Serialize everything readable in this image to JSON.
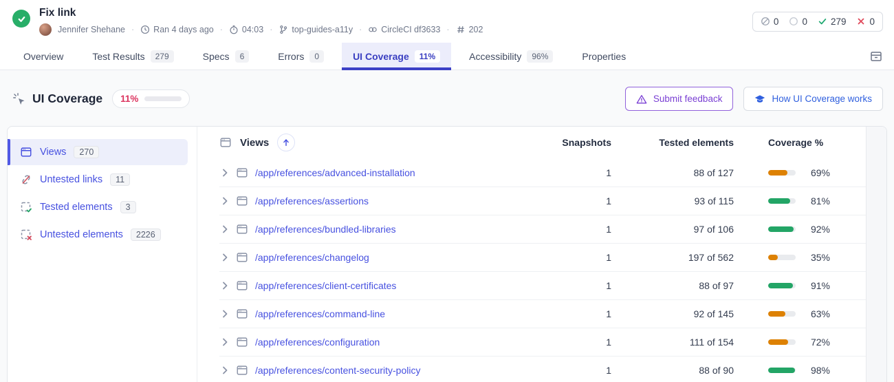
{
  "header": {
    "title": "Fix link",
    "author": "Jennifer Shehane",
    "ran": "Ran 4 days ago",
    "duration": "04:03",
    "branch": "top-guides-a11y",
    "commit": "CircleCI df3633",
    "build_number": "202",
    "stats": [
      {
        "icon": "skipped-icon",
        "value": "0"
      },
      {
        "icon": "pending-icon",
        "value": "0"
      },
      {
        "icon": "passed-icon",
        "value": "279"
      },
      {
        "icon": "failed-icon",
        "value": "0"
      }
    ]
  },
  "tabs": [
    {
      "label": "Overview"
    },
    {
      "label": "Test Results",
      "badge": "279"
    },
    {
      "label": "Specs",
      "badge": "6"
    },
    {
      "label": "Errors",
      "badge": "0"
    },
    {
      "label": "UI Coverage",
      "badge": "11%",
      "active": true
    },
    {
      "label": "Accessibility",
      "badge": "96%"
    },
    {
      "label": "Properties"
    }
  ],
  "page": {
    "title": "UI Coverage",
    "score": "11%",
    "score_value": 11,
    "feedback_button": "Submit feedback",
    "docs_button": "How UI Coverage works"
  },
  "sidebar": {
    "items": [
      {
        "label": "Views",
        "badge": "270",
        "icon": "browser-icon",
        "active": true
      },
      {
        "label": "Untested links",
        "badge": "11",
        "icon": "unlink-icon"
      },
      {
        "label": "Tested elements",
        "badge": "3",
        "icon": "element-check-icon"
      },
      {
        "label": "Untested elements",
        "badge": "2226",
        "icon": "element-x-icon"
      }
    ]
  },
  "table": {
    "group_header": "Views",
    "columns": [
      "Snapshots",
      "Tested elements",
      "Coverage %"
    ],
    "rows": [
      {
        "view": "/app/references/advanced-installation",
        "snapshots": "1",
        "tested": "88 of 127",
        "coverage": 69,
        "coverage_label": "69%",
        "bar": "orange"
      },
      {
        "view": "/app/references/assertions",
        "snapshots": "1",
        "tested": "93 of 115",
        "coverage": 81,
        "coverage_label": "81%",
        "bar": "green"
      },
      {
        "view": "/app/references/bundled-libraries",
        "snapshots": "1",
        "tested": "97 of 106",
        "coverage": 92,
        "coverage_label": "92%",
        "bar": "green"
      },
      {
        "view": "/app/references/changelog",
        "snapshots": "1",
        "tested": "197 of 562",
        "coverage": 35,
        "coverage_label": "35%",
        "bar": "orange"
      },
      {
        "view": "/app/references/client-certificates",
        "snapshots": "1",
        "tested": "88 of 97",
        "coverage": 91,
        "coverage_label": "91%",
        "bar": "green"
      },
      {
        "view": "/app/references/command-line",
        "snapshots": "1",
        "tested": "92 of 145",
        "coverage": 63,
        "coverage_label": "63%",
        "bar": "orange"
      },
      {
        "view": "/app/references/configuration",
        "snapshots": "1",
        "tested": "111 of 154",
        "coverage": 72,
        "coverage_label": "72%",
        "bar": "orange"
      },
      {
        "view": "/app/references/content-security-policy",
        "snapshots": "1",
        "tested": "88 of 90",
        "coverage": 98,
        "coverage_label": "98%",
        "bar": "green"
      }
    ]
  },
  "colors": {
    "accent": "#3c40c6",
    "link": "#4751e0",
    "success": "#23a566",
    "warning": "#dd8103",
    "danger": "#dc355f"
  }
}
